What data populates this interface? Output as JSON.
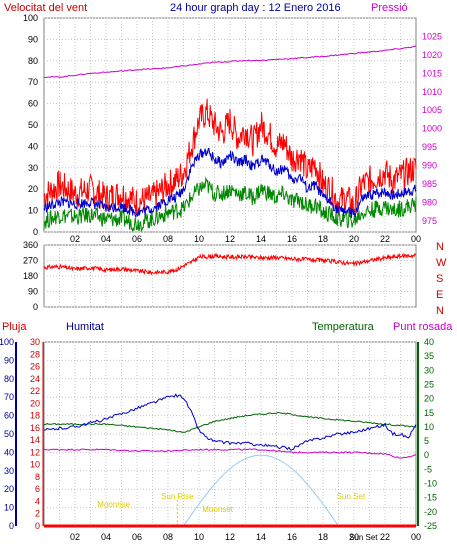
{
  "header": {
    "wind_label": "Velocitat del vent",
    "title": "24 hour graph day : 12 Enero 2016",
    "pressure_label": "Pressió"
  },
  "labels": {
    "rain": "Pluja",
    "humidity": "Humitat",
    "temperature": "Temperatura",
    "dew_point": "Punt rosada"
  },
  "colors": {
    "wind_gust": "#ff0000",
    "wind_avg": "#0000cc",
    "wind_min": "#008800",
    "pressure": "#cc00cc",
    "humidity": "#0000cc",
    "temperature": "#006600",
    "dew_point": "#cc00cc",
    "rain": "#ff0000",
    "sun_curve": "#99ccee",
    "sun_events": "#ddcc00",
    "axis_text": "#000000"
  },
  "chart_data": [
    {
      "type": "line",
      "name": "wind_pressure",
      "x_ticks": [
        "02",
        "04",
        "06",
        "08",
        "10",
        "12",
        "14",
        "16",
        "18",
        "20",
        "22",
        "00"
      ],
      "y_left": {
        "ticks": [
          0,
          10,
          20,
          30,
          40,
          50,
          60,
          70,
          80,
          90,
          100
        ],
        "lim": [
          0,
          100
        ]
      },
      "y_right": {
        "ticks": [
          975,
          980,
          985,
          990,
          995,
          1000,
          1005,
          1010,
          1015,
          1020,
          1025
        ],
        "lim": [
          972,
          1030
        ]
      },
      "grid": true,
      "series": [
        {
          "id": "gust",
          "axis": "left",
          "x": [
            0,
            1,
            2,
            3,
            4,
            5,
            6,
            7,
            8,
            8.5,
            9,
            9.5,
            10,
            10.5,
            11,
            11.5,
            12,
            12.5,
            13,
            13.5,
            14,
            14.5,
            15,
            15.5,
            16,
            16.5,
            17,
            17.5,
            18,
            18.5,
            19,
            19.5,
            20,
            20.5,
            21,
            21.5,
            22,
            22.5,
            23,
            23.5,
            24
          ],
          "y": [
            17,
            22,
            18,
            20,
            16,
            18,
            14,
            16,
            22,
            24,
            28,
            40,
            52,
            56,
            50,
            46,
            52,
            44,
            48,
            42,
            50,
            46,
            40,
            42,
            34,
            36,
            28,
            32,
            22,
            20,
            14,
            16,
            12,
            22,
            24,
            26,
            28,
            24,
            26,
            28,
            30
          ]
        },
        {
          "id": "average",
          "axis": "left",
          "x": [
            0,
            1,
            2,
            3,
            4,
            5,
            6,
            7,
            8,
            8.5,
            9,
            9.5,
            10,
            10.5,
            11,
            11.5,
            12,
            12.5,
            13,
            13.5,
            14,
            14.5,
            15,
            15.5,
            16,
            16.5,
            17,
            17.5,
            18,
            18.5,
            19,
            19.5,
            20,
            20.5,
            21,
            21.5,
            22,
            22.5,
            23,
            23.5,
            24
          ],
          "y": [
            11,
            14,
            13,
            14,
            11,
            12,
            9,
            11,
            15,
            16,
            20,
            30,
            36,
            38,
            34,
            32,
            36,
            32,
            34,
            30,
            34,
            32,
            28,
            30,
            24,
            26,
            20,
            22,
            16,
            14,
            10,
            10,
            8,
            15,
            17,
            18,
            19,
            17,
            18,
            19,
            20
          ]
        },
        {
          "id": "minimum",
          "axis": "left",
          "x": [
            0,
            1,
            2,
            3,
            4,
            5,
            6,
            7,
            8,
            8.5,
            9,
            9.5,
            10,
            10.5,
            11,
            11.5,
            12,
            12.5,
            13,
            13.5,
            14,
            14.5,
            15,
            15.5,
            16,
            16.5,
            17,
            17.5,
            18,
            18.5,
            19,
            19.5,
            20,
            20.5,
            21,
            21.5,
            22,
            22.5,
            23,
            23.5,
            24
          ],
          "y": [
            5,
            8,
            7,
            8,
            6,
            6,
            4,
            6,
            9,
            10,
            11,
            16,
            20,
            22,
            18,
            18,
            20,
            18,
            18,
            16,
            20,
            18,
            16,
            18,
            14,
            15,
            12,
            13,
            9,
            8,
            6,
            6,
            5,
            9,
            10,
            11,
            12,
            10,
            11,
            12,
            13
          ]
        },
        {
          "id": "pressure",
          "axis": "right",
          "x": [
            0,
            1,
            2,
            3,
            4,
            5,
            6,
            7,
            8,
            9,
            10,
            11,
            12,
            13,
            14,
            15,
            16,
            17,
            18,
            19,
            20,
            21,
            22,
            23,
            24
          ],
          "y": [
            1014,
            1014,
            1014.5,
            1015,
            1015.3,
            1015.6,
            1016,
            1016.2,
            1016.5,
            1017,
            1017.5,
            1018,
            1018.2,
            1018.5,
            1018.5,
            1018.8,
            1019,
            1019.3,
            1019.6,
            1020,
            1020.4,
            1020.8,
            1021.2,
            1021.7,
            1022.3
          ]
        }
      ]
    },
    {
      "type": "line",
      "name": "wind_direction",
      "x_ticks": [],
      "y_left": {
        "ticks": [
          0,
          90,
          180,
          270,
          360
        ],
        "lim": [
          0,
          360
        ]
      },
      "y_right_labels": [
        "N",
        "W",
        "S",
        "E",
        "N"
      ],
      "grid": true,
      "series": [
        {
          "id": "direction",
          "axis": "left",
          "x": [
            0,
            1,
            2,
            3,
            4,
            5,
            6,
            7,
            8,
            8.5,
            9,
            9.5,
            10,
            11,
            12,
            13,
            14,
            15,
            16,
            17,
            18,
            19,
            20,
            21,
            22,
            23,
            24
          ],
          "y": [
            230,
            235,
            220,
            228,
            215,
            222,
            210,
            200,
            205,
            215,
            240,
            260,
            290,
            295,
            290,
            292,
            285,
            288,
            280,
            276,
            270,
            262,
            250,
            270,
            285,
            295,
            300
          ]
        }
      ]
    },
    {
      "type": "line",
      "name": "humidity_temperature",
      "x_ticks": [
        "02",
        "04",
        "06",
        "08",
        "10",
        "12",
        "14",
        "16",
        "18",
        "20",
        "22",
        "00"
      ],
      "y_humidity": {
        "ticks": [
          0,
          10,
          20,
          30,
          40,
          50,
          60,
          70,
          80,
          90,
          100
        ],
        "lim": [
          0,
          100
        ]
      },
      "y_rain": {
        "ticks": [
          0,
          2,
          4,
          6,
          8,
          10,
          12,
          14,
          16,
          18,
          20,
          22,
          24,
          26,
          28,
          30
        ],
        "lim": [
          0,
          30
        ]
      },
      "y_temperature": {
        "ticks": [
          -25,
          -20,
          -15,
          -10,
          -5,
          0,
          5,
          10,
          15,
          20,
          25,
          30,
          35,
          40
        ],
        "lim": [
          -25,
          40
        ]
      },
      "sun_events": [
        "Sun Rise",
        "Sun Set",
        "Sun Set"
      ],
      "moon_events": [
        "Moonrise",
        "Moonset"
      ],
      "grid": true,
      "series": [
        {
          "id": "humidity",
          "axis": "humidity",
          "x": [
            0,
            1,
            2,
            3,
            4,
            5,
            6,
            7,
            8,
            8.5,
            9,
            9.5,
            10,
            10.5,
            11,
            12,
            13,
            14,
            15,
            16,
            17,
            18,
            19,
            20,
            21,
            22,
            22.5,
            23,
            23.5,
            24
          ],
          "y": [
            52,
            53,
            54,
            56,
            58,
            61,
            64,
            67,
            70,
            71,
            70,
            62,
            52,
            48,
            46,
            45,
            45,
            44,
            43,
            42,
            46,
            48,
            50,
            51,
            53,
            55,
            50,
            50,
            48,
            55
          ]
        },
        {
          "id": "temperature",
          "axis": "temperature",
          "x": [
            0,
            1,
            2,
            3,
            4,
            5,
            6,
            7,
            8,
            9,
            10,
            11,
            12,
            13,
            14,
            15,
            16,
            17,
            18,
            19,
            20,
            21,
            22,
            23,
            24
          ],
          "y": [
            11,
            11,
            11,
            11,
            11,
            10.5,
            10,
            9.5,
            9,
            8,
            10,
            12,
            13,
            14,
            14.5,
            15,
            14.5,
            13.5,
            13,
            12.5,
            12,
            11.5,
            11,
            10.5,
            10
          ]
        },
        {
          "id": "dew_point",
          "axis": "temperature",
          "x": [
            0,
            2,
            4,
            6,
            8,
            10,
            12,
            14,
            16,
            18,
            20,
            22,
            23,
            24
          ],
          "y": [
            2,
            2,
            2,
            1.5,
            1.5,
            2,
            2,
            2,
            1,
            1,
            1,
            0.5,
            -1,
            0
          ]
        },
        {
          "id": "sun_elevation",
          "axis": "temperature",
          "x": [
            9,
            10,
            11,
            12,
            13,
            14,
            15,
            16,
            17,
            18,
            19
          ],
          "y": [
            -25,
            -17,
            -11,
            -5,
            -1,
            0,
            -1,
            -5,
            -11,
            -17,
            -25
          ]
        },
        {
          "id": "rain",
          "axis": "rain",
          "x": [
            0,
            24
          ],
          "y": [
            0,
            0
          ]
        }
      ]
    }
  ]
}
